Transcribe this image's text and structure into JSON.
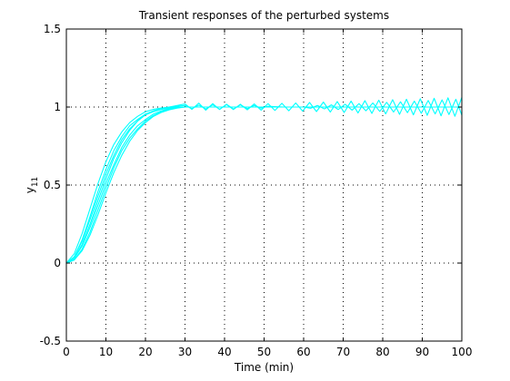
{
  "chart_data": {
    "type": "line",
    "title": "Transient responses of the perturbed systems",
    "xlabel": "Time (min)",
    "ylabel": {
      "main": "y",
      "subscript": "11"
    },
    "xlim": [
      0,
      100
    ],
    "ylim": [
      -0.5,
      1.5
    ],
    "xticks": [
      0,
      10,
      20,
      30,
      40,
      50,
      60,
      70,
      80,
      90,
      100
    ],
    "yticks": [
      -0.5,
      0,
      0.5,
      1,
      1.5
    ],
    "xtick_labels": [
      "0",
      "10",
      "20",
      "30",
      "40",
      "50",
      "60",
      "70",
      "80",
      "90",
      "100"
    ],
    "ytick_labels": [
      "-0.5",
      "0",
      "0.5",
      "1",
      "1.5"
    ],
    "grid": true,
    "series_color": "#00ffff",
    "series": [
      {
        "x": [
          0,
          2,
          4,
          6,
          8,
          10,
          12,
          14,
          16,
          18,
          20,
          22,
          24,
          26,
          28,
          30,
          34,
          38,
          42,
          46,
          50,
          55,
          60,
          70,
          80,
          90,
          100
        ],
        "y": [
          0,
          0.06,
          0.19,
          0.35,
          0.51,
          0.65,
          0.76,
          0.84,
          0.9,
          0.94,
          0.97,
          0.985,
          0.994,
          0.998,
          1,
          1,
          1,
          1,
          1,
          1,
          1,
          1,
          1,
          1,
          1,
          1,
          1
        ]
      },
      {
        "x": [
          0,
          2,
          4,
          6,
          8,
          10,
          12,
          14,
          16,
          18,
          20,
          22,
          24,
          26,
          28,
          30,
          34,
          38,
          42,
          46,
          50,
          55,
          60,
          70,
          80,
          90,
          100
        ],
        "y": [
          0,
          0.04,
          0.14,
          0.28,
          0.43,
          0.57,
          0.69,
          0.79,
          0.86,
          0.91,
          0.95,
          0.97,
          0.985,
          0.993,
          0.998,
          1,
          1,
          1,
          1,
          1,
          1,
          1,
          1,
          1,
          1,
          1,
          1
        ]
      },
      {
        "x": [
          0,
          2,
          4,
          6,
          8,
          10,
          12,
          14,
          16,
          18,
          20,
          22,
          24,
          26,
          28,
          30,
          34,
          38,
          42,
          46,
          50,
          55,
          60,
          70,
          80,
          90,
          100
        ],
        "y": [
          0,
          0.03,
          0.11,
          0.23,
          0.37,
          0.51,
          0.63,
          0.74,
          0.82,
          0.88,
          0.92,
          0.955,
          0.975,
          0.99,
          0.997,
          1,
          1,
          1,
          1,
          1,
          1,
          1,
          1,
          1,
          1,
          1,
          1
        ]
      },
      {
        "x": [
          0,
          2,
          4,
          6,
          8,
          10,
          12,
          14,
          16,
          18,
          20,
          22,
          24,
          26,
          28,
          30,
          34,
          38,
          42,
          46,
          50,
          55,
          60,
          70,
          80,
          90,
          100
        ],
        "y": [
          0,
          0.02,
          0.08,
          0.18,
          0.31,
          0.45,
          0.58,
          0.69,
          0.78,
          0.85,
          0.9,
          0.94,
          0.965,
          0.982,
          0.993,
          1,
          1,
          1,
          1,
          1,
          1,
          1,
          1,
          1,
          1,
          1,
          1
        ]
      },
      {
        "x": [
          0,
          2,
          4,
          6,
          8,
          10,
          12,
          14,
          16,
          18,
          20,
          22,
          24,
          26,
          28,
          30,
          31.75,
          33.5,
          35.25,
          37,
          38.75,
          40.5,
          42.25,
          44,
          45.75,
          47.5,
          49.25,
          51,
          55,
          60,
          70,
          80,
          90,
          100
        ],
        "y": [
          0,
          0.03,
          0.12,
          0.25,
          0.4,
          0.54,
          0.67,
          0.77,
          0.85,
          0.91,
          0.95,
          0.975,
          0.99,
          1.0,
          1.01,
          1.02,
          0.985,
          1.025,
          0.98,
          1.022,
          0.984,
          1.018,
          0.987,
          1.014,
          0.99,
          1.01,
          0.993,
          1.005,
          1,
          1,
          1,
          1,
          1,
          1
        ]
      },
      {
        "x": [
          0,
          2,
          4,
          6,
          8,
          10,
          12,
          14,
          16,
          18,
          20,
          22,
          24,
          26,
          28,
          30,
          31.75,
          33.5,
          35.25,
          37,
          38.75,
          40.5,
          42.25,
          44,
          45.75,
          47.5,
          49.25,
          51,
          52.75,
          54.5,
          56.25,
          58,
          59.75,
          61.5,
          63.25,
          65,
          66.75,
          68.5,
          70.25,
          72,
          73.75,
          75.5,
          77.25,
          79,
          80.75,
          82.5,
          84.25,
          86,
          87.75,
          89.5,
          91.25,
          93,
          94.75,
          96.5,
          98.25,
          100
        ],
        "y": [
          0,
          0.04,
          0.15,
          0.3,
          0.46,
          0.6,
          0.72,
          0.81,
          0.88,
          0.92,
          0.955,
          0.975,
          0.99,
          1.0,
          1.005,
          1.01,
          0.99,
          1.012,
          0.988,
          1.014,
          0.986,
          1.016,
          0.984,
          1.018,
          0.982,
          1.02,
          0.98,
          1.022,
          0.978,
          1.024,
          0.976,
          1.026,
          0.974,
          1.029,
          0.971,
          1.032,
          0.968,
          1.035,
          0.965,
          1.038,
          0.962,
          1.041,
          0.959,
          1.044,
          0.956,
          1.047,
          0.953,
          1.05,
          0.95,
          1.053,
          0.947,
          1.056,
          0.944,
          1.059,
          0.941,
          1.062
        ]
      },
      {
        "x": [
          0,
          2,
          4,
          6,
          8,
          10,
          12,
          14,
          16,
          18,
          20,
          22,
          24,
          26,
          28,
          30,
          34,
          38,
          42,
          46,
          50,
          55,
          60,
          61.75,
          63.5,
          65.25,
          67,
          68.75,
          70.5,
          72.25,
          74,
          75.75,
          77.5,
          79.25,
          81,
          82.75,
          84.5,
          86.25,
          88,
          89.75,
          91.5,
          93.25,
          95,
          96.75,
          98.5,
          100
        ],
        "y": [
          0,
          0.02,
          0.09,
          0.2,
          0.34,
          0.48,
          0.61,
          0.72,
          0.8,
          0.86,
          0.91,
          0.945,
          0.97,
          0.986,
          0.995,
          1,
          1,
          1,
          1,
          1,
          1,
          1,
          1,
          0.992,
          1.01,
          0.988,
          1.014,
          0.984,
          1.018,
          0.98,
          1.022,
          0.976,
          1.026,
          0.972,
          1.03,
          0.968,
          1.034,
          0.964,
          1.038,
          0.96,
          1.042,
          0.956,
          1.046,
          0.952,
          1.05,
          0.948
        ]
      }
    ]
  }
}
